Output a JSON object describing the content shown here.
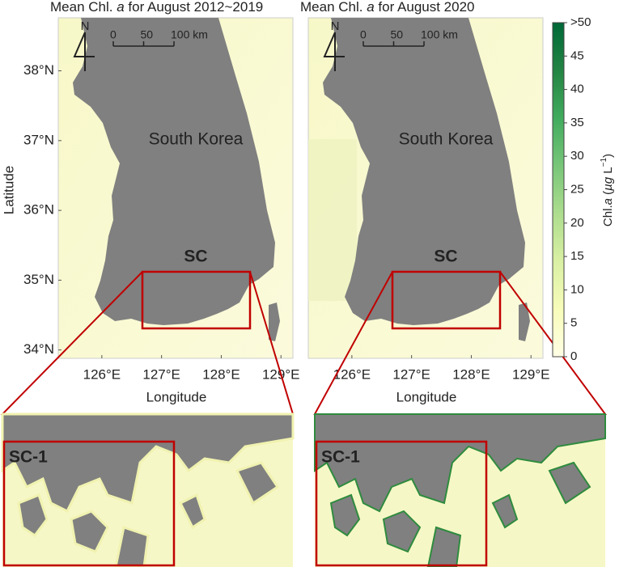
{
  "panels": [
    {
      "title": [
        "Mean Chl. ",
        "a",
        " for August 2012~2019"
      ],
      "land_label": "South Korea",
      "region_label": "SC",
      "scale_bar": {
        "north": "N",
        "ticks": [
          {
            "value": 0,
            "label": "0"
          },
          {
            "value": 50,
            "label": "50"
          },
          {
            "value": 100,
            "label": "100 km"
          }
        ]
      }
    },
    {
      "title": [
        "Mean Chl. ",
        "a",
        " for August 2020"
      ],
      "land_label": "South Korea",
      "region_label": "SC",
      "scale_bar": {
        "north": "N",
        "ticks": [
          {
            "value": 0,
            "label": "0"
          },
          {
            "value": 50,
            "label": "50"
          },
          {
            "value": 100,
            "label": "100 km"
          }
        ]
      }
    }
  ],
  "latitude_axis": {
    "label": "Latitude",
    "lim": [
      33.88,
      38.76
    ],
    "ticks": [
      {
        "value": 38,
        "label": "38°N"
      },
      {
        "value": 37,
        "label": "37°N"
      },
      {
        "value": 36,
        "label": "36°N"
      },
      {
        "value": 35,
        "label": "35°N"
      },
      {
        "value": 34,
        "label": "34°N"
      }
    ]
  },
  "longitude_axis": {
    "label": "Longitude",
    "lim": [
      125.27,
      129.2
    ],
    "ticks": [
      {
        "value": 126,
        "label": "126°E"
      },
      {
        "value": 127,
        "label": "127°E"
      },
      {
        "value": 128,
        "label": "128°E"
      },
      {
        "value": 129,
        "label": "129°E"
      }
    ]
  },
  "colorbar": {
    "label": [
      "Chl.",
      "a",
      " (",
      "µg",
      " L",
      "−1",
      ")"
    ],
    "lim": [
      0,
      50
    ],
    "colors": [
      "#ffffe5",
      "#f7fcb9",
      "#d9f0a3",
      "#addd8e",
      "#78c679",
      "#41ab5d",
      "#238443",
      "#006837"
    ],
    "ticks": [
      {
        "value": 50,
        "label": ">50"
      },
      45,
      40,
      35,
      30,
      25,
      20,
      15,
      10,
      5,
      0
    ]
  },
  "insets": [
    {
      "label": "SC-1"
    },
    {
      "label": "SC-1"
    }
  ]
}
